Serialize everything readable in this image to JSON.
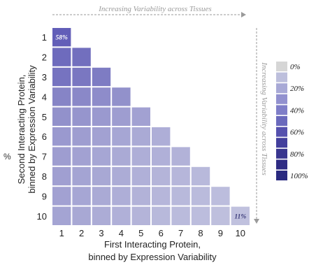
{
  "chart_data": {
    "type": "heatmap",
    "layout": "lower-triangular",
    "xlabel_lines": [
      "First Interacting Protein,",
      "binned by Expression Variability"
    ],
    "ylabel_lines": [
      "Second Interacting Protein,",
      "binned by Expression Variability"
    ],
    "x_ticks": [
      "1",
      "2",
      "3",
      "4",
      "5",
      "6",
      "7",
      "8",
      "9",
      "10"
    ],
    "y_ticks": [
      "1",
      "2",
      "3",
      "4",
      "5",
      "6",
      "7",
      "8",
      "9",
      "10"
    ],
    "top_arrow_label": "Increasing Variability across Tissues",
    "right_arrow_label": "Increasing Variability across Tissues",
    "left_edge_glyph": "%",
    "color_scale_max": 100,
    "values": [
      [
        58
      ],
      [
        52,
        50
      ],
      [
        48,
        46,
        44
      ],
      [
        40,
        38,
        36,
        34
      ],
      [
        34,
        32,
        30,
        28,
        26
      ],
      [
        30,
        28,
        26,
        24,
        22,
        20
      ],
      [
        28,
        26,
        24,
        22,
        20,
        19,
        18
      ],
      [
        27,
        25,
        23,
        21,
        19,
        17,
        16,
        15
      ],
      [
        26,
        24,
        22,
        20,
        18,
        16,
        15,
        14,
        13
      ],
      [
        25,
        23,
        21,
        19,
        17,
        15,
        14,
        13,
        12,
        11
      ]
    ],
    "cell_labels": [
      {
        "row": 1,
        "col": 1,
        "text": "58%"
      },
      {
        "row": 10,
        "col": 10,
        "text": "11%"
      }
    ],
    "legend": {
      "position": "right",
      "entries": [
        {
          "label": "0%",
          "color": "#d6d6d6"
        },
        {
          "label": "",
          "color": "#bdbfdc"
        },
        {
          "label": "20%",
          "color": "#a8a9d6"
        },
        {
          "label": "",
          "color": "#9291cf"
        },
        {
          "label": "40%",
          "color": "#7f7ec8"
        },
        {
          "label": "",
          "color": "#6a69bc"
        },
        {
          "label": "60%",
          "color": "#5551ae"
        },
        {
          "label": "",
          "color": "#433f9d"
        },
        {
          "label": "80%",
          "color": "#39368f"
        },
        {
          "label": "",
          "color": "#2f2c84"
        },
        {
          "label": "100%",
          "color": "#2a2a80"
        }
      ]
    },
    "colors": {
      "low": "#c2c3df",
      "high": "#5e5ab6",
      "label_light": "#ffffff",
      "label_dark": "#3c3c7a",
      "arrow": "#9a9a9a",
      "cell_border": "#ffffff"
    }
  }
}
